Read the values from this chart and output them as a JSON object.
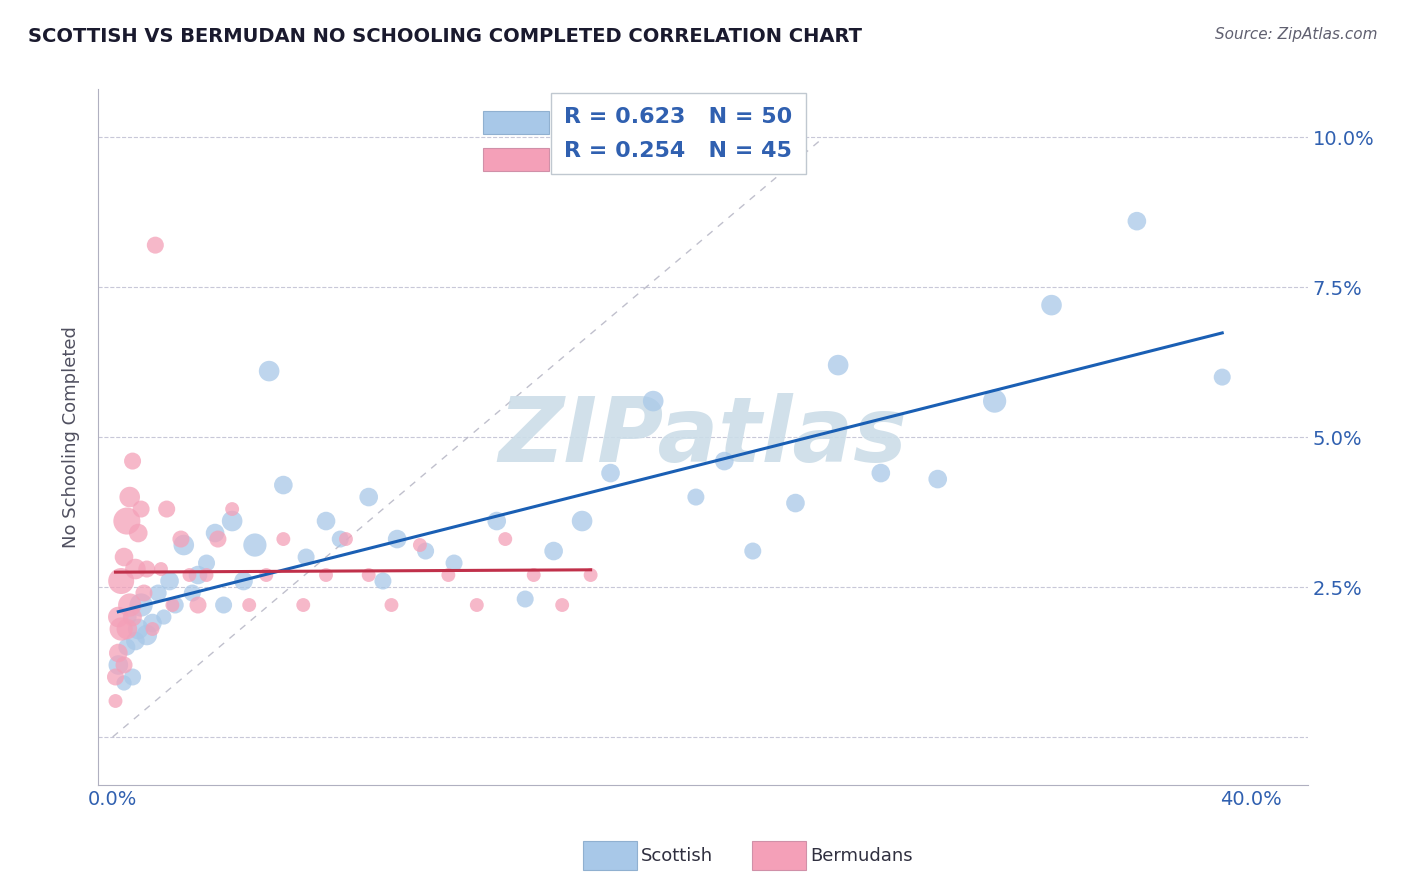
{
  "title": "SCOTTISH VS BERMUDAN NO SCHOOLING COMPLETED CORRELATION CHART",
  "source_text": "Source: ZipAtlas.com",
  "ylabel": "No Schooling Completed",
  "xlim": [
    -0.005,
    0.42
  ],
  "ylim": [
    -0.008,
    0.108
  ],
  "xticks": [
    0.0,
    0.4
  ],
  "yticks": [
    0.0,
    0.025,
    0.05,
    0.075,
    0.1
  ],
  "xtick_labels": [
    "0.0%",
    "40.0%"
  ],
  "ytick_labels_right": [
    "",
    "2.5%",
    "5.0%",
    "7.5%",
    "10.0%"
  ],
  "legend_r_scottish": "R = 0.623",
  "legend_n_scottish": "N = 50",
  "legend_r_bermudan": "R = 0.254",
  "legend_n_bermudan": "N = 45",
  "scottish_color": "#a8c8e8",
  "bermudan_color": "#f4a0b8",
  "scottish_line_color": "#1a5fb4",
  "bermudan_line_color": "#c0304a",
  "watermark_text": "ZIPatlas",
  "watermark_color": "#ccdde8",
  "background_color": "#ffffff",
  "grid_color": "#c8c8d8",
  "title_color": "#1a1a2e",
  "label_color": "#3060b0",
  "scottish_x": [
    0.002,
    0.004,
    0.005,
    0.006,
    0.007,
    0.008,
    0.009,
    0.01,
    0.012,
    0.014,
    0.016,
    0.018,
    0.02,
    0.022,
    0.025,
    0.028,
    0.03,
    0.033,
    0.036,
    0.039,
    0.042,
    0.046,
    0.05,
    0.055,
    0.06,
    0.068,
    0.075,
    0.08,
    0.09,
    0.095,
    0.1,
    0.11,
    0.12,
    0.135,
    0.145,
    0.155,
    0.165,
    0.175,
    0.19,
    0.205,
    0.215,
    0.225,
    0.24,
    0.255,
    0.27,
    0.29,
    0.31,
    0.33,
    0.36,
    0.39
  ],
  "scottish_y": [
    0.012,
    0.009,
    0.015,
    0.02,
    0.01,
    0.016,
    0.018,
    0.022,
    0.017,
    0.019,
    0.024,
    0.02,
    0.026,
    0.022,
    0.032,
    0.024,
    0.027,
    0.029,
    0.034,
    0.022,
    0.036,
    0.026,
    0.032,
    0.061,
    0.042,
    0.03,
    0.036,
    0.033,
    0.04,
    0.026,
    0.033,
    0.031,
    0.029,
    0.036,
    0.023,
    0.031,
    0.036,
    0.044,
    0.056,
    0.04,
    0.046,
    0.031,
    0.039,
    0.062,
    0.044,
    0.043,
    0.056,
    0.072,
    0.086,
    0.06
  ],
  "scottish_size": [
    200,
    120,
    150,
    100,
    150,
    180,
    220,
    280,
    220,
    180,
    150,
    120,
    180,
    150,
    220,
    150,
    180,
    150,
    180,
    150,
    220,
    180,
    280,
    220,
    180,
    150,
    180,
    150,
    180,
    150,
    180,
    150,
    150,
    180,
    150,
    180,
    220,
    180,
    220,
    150,
    180,
    150,
    180,
    220,
    180,
    180,
    280,
    220,
    180,
    150
  ],
  "bermudan_x": [
    0.001,
    0.001,
    0.002,
    0.002,
    0.003,
    0.003,
    0.004,
    0.004,
    0.005,
    0.005,
    0.006,
    0.006,
    0.007,
    0.007,
    0.008,
    0.009,
    0.01,
    0.011,
    0.012,
    0.014,
    0.015,
    0.017,
    0.019,
    0.021,
    0.024,
    0.027,
    0.03,
    0.033,
    0.037,
    0.042,
    0.048,
    0.054,
    0.06,
    0.067,
    0.075,
    0.082,
    0.09,
    0.098,
    0.108,
    0.118,
    0.128,
    0.138,
    0.148,
    0.158,
    0.168
  ],
  "bermudan_y": [
    0.006,
    0.01,
    0.014,
    0.02,
    0.018,
    0.026,
    0.012,
    0.03,
    0.018,
    0.036,
    0.022,
    0.04,
    0.02,
    0.046,
    0.028,
    0.034,
    0.038,
    0.024,
    0.028,
    0.018,
    0.082,
    0.028,
    0.038,
    0.022,
    0.033,
    0.027,
    0.022,
    0.027,
    0.033,
    0.038,
    0.022,
    0.027,
    0.033,
    0.022,
    0.027,
    0.033,
    0.027,
    0.022,
    0.032,
    0.027,
    0.022,
    0.033,
    0.027,
    0.022,
    0.027
  ],
  "bermudan_size": [
    100,
    150,
    180,
    220,
    280,
    350,
    150,
    180,
    220,
    380,
    280,
    220,
    180,
    150,
    220,
    180,
    150,
    150,
    150,
    100,
    150,
    100,
    150,
    100,
    150,
    100,
    150,
    100,
    150,
    100,
    100,
    100,
    100,
    100,
    100,
    100,
    100,
    100,
    100,
    100,
    100,
    100,
    100,
    100,
    100
  ]
}
